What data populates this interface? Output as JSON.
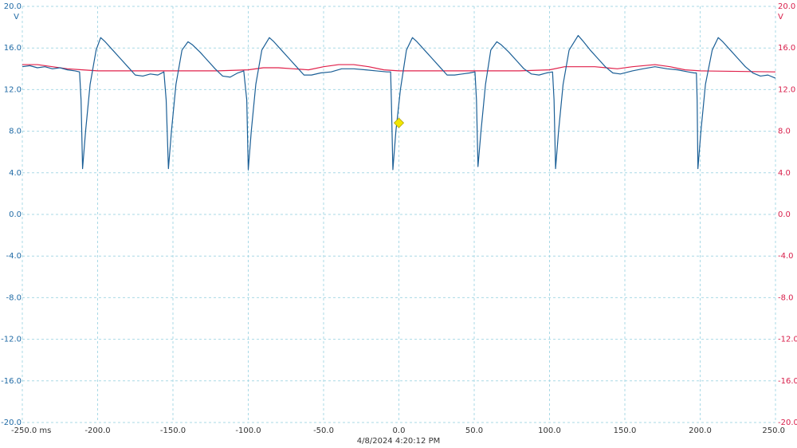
{
  "chart_data": {
    "type": "line",
    "footer": "4/8/2024 4:20:12 PM",
    "y_unit": "V",
    "y2_unit": "V",
    "grid": true,
    "xlim": [
      -250,
      250
    ],
    "xticks": [
      {
        "value": -250,
        "label": "-250.0 ms"
      },
      {
        "value": -200,
        "label": "-200.0"
      },
      {
        "value": -150,
        "label": "-150.0"
      },
      {
        "value": -100,
        "label": "-100.0"
      },
      {
        "value": -50,
        "label": "-50.0"
      },
      {
        "value": 0,
        "label": "0.0"
      },
      {
        "value": 50,
        "label": "50.0"
      },
      {
        "value": 100,
        "label": "100.0"
      },
      {
        "value": 150,
        "label": "150.0"
      },
      {
        "value": 200,
        "label": "200.0"
      },
      {
        "value": 250,
        "label": "250.0"
      }
    ],
    "ylim": [
      -20,
      20
    ],
    "yticks": [
      {
        "value": 20,
        "label": "20.0"
      },
      {
        "value": 16,
        "label": "16.0"
      },
      {
        "value": 12,
        "label": "12.0"
      },
      {
        "value": 8,
        "label": "8.0"
      },
      {
        "value": 4,
        "label": "4.0"
      },
      {
        "value": 0,
        "label": "0.0"
      },
      {
        "value": -4,
        "label": "-4.0"
      },
      {
        "value": -8,
        "label": "-8.0"
      },
      {
        "value": -12,
        "label": "-12.0"
      },
      {
        "value": -16,
        "label": "-16.0"
      },
      {
        "value": -20,
        "label": "-20.0"
      }
    ],
    "y2lim": [
      -20,
      20
    ],
    "y2ticks": [
      {
        "value": 20,
        "label": "20.0"
      },
      {
        "value": 16,
        "label": "16.0"
      },
      {
        "value": 12,
        "label": "12.0"
      },
      {
        "value": 8,
        "label": "8.0"
      },
      {
        "value": 4,
        "label": "4.0"
      },
      {
        "value": 0,
        "label": "0.0"
      },
      {
        "value": -4,
        "label": "-4.0"
      },
      {
        "value": -8,
        "label": "-8.0"
      },
      {
        "value": -12,
        "label": "-12.0"
      },
      {
        "value": -16,
        "label": "-16.0"
      },
      {
        "value": -20,
        "label": "-20.0"
      }
    ],
    "y_color": "#1f6aa5",
    "y2_color": "#d81e4a",
    "trigger": {
      "x": 0,
      "y": 8.8,
      "color": "#f2e600"
    },
    "series": [
      {
        "color": "#1b5f96",
        "axis": "y",
        "x": [
          -250,
          -245,
          -240,
          -235,
          -230,
          -225,
          -220,
          -215,
          -212,
          -211,
          -210,
          -208,
          -205,
          -201,
          -198,
          -195,
          -190,
          -185,
          -180,
          -175,
          -170,
          -165,
          -160,
          -156,
          -154.5,
          -153,
          -151,
          -148,
          -144,
          -140,
          -137,
          -132,
          -127,
          -122,
          -117,
          -112,
          -107,
          -103,
          -101,
          -100,
          -98,
          -95,
          -91,
          -86,
          -83,
          -78,
          -73,
          -68,
          -63,
          -58,
          -52,
          -45,
          -38,
          -30,
          -22,
          -15,
          -8,
          -5.5,
          -5,
          -4,
          -2,
          1,
          5,
          9,
          12,
          17,
          22,
          27,
          32,
          37,
          42,
          47,
          50.5,
          51.5,
          52.5,
          54.5,
          57.5,
          61,
          65,
          68,
          73,
          78,
          83,
          88,
          93,
          98,
          102,
          103,
          104,
          106,
          109,
          113,
          119,
          122,
          127,
          132,
          137,
          142,
          147,
          155,
          162,
          170,
          178,
          185,
          192,
          196,
          197.5,
          198,
          198.5,
          200.5,
          203.5,
          208,
          212,
          215,
          220,
          225,
          230,
          235,
          240,
          245,
          250
        ],
        "values": [
          14.2,
          14.3,
          14.1,
          14.2,
          14.0,
          14.1,
          13.9,
          13.8,
          13.7,
          11.0,
          4.4,
          8.0,
          12.5,
          15.8,
          17.0,
          16.6,
          15.8,
          15.0,
          14.2,
          13.4,
          13.3,
          13.5,
          13.4,
          13.7,
          11.0,
          4.4,
          8.0,
          12.5,
          15.8,
          16.6,
          16.3,
          15.6,
          14.8,
          14.0,
          13.3,
          13.2,
          13.6,
          13.8,
          11.0,
          4.3,
          8.0,
          12.5,
          15.8,
          17.0,
          16.6,
          15.8,
          15.0,
          14.2,
          13.4,
          13.4,
          13.6,
          13.7,
          14.0,
          14.0,
          13.9,
          13.8,
          13.7,
          13.7,
          11.0,
          4.3,
          8.0,
          12.0,
          15.8,
          17.0,
          16.6,
          15.8,
          15.0,
          14.2,
          13.4,
          13.4,
          13.5,
          13.6,
          13.7,
          11.0,
          4.6,
          8.0,
          12.5,
          15.8,
          16.6,
          16.3,
          15.6,
          14.8,
          14.0,
          13.5,
          13.4,
          13.6,
          13.7,
          11.0,
          4.4,
          8.0,
          12.5,
          15.8,
          17.2,
          16.7,
          15.8,
          15.0,
          14.2,
          13.6,
          13.5,
          13.8,
          14.0,
          14.2,
          14.0,
          13.9,
          13.7,
          13.6,
          13.6,
          11.0,
          4.4,
          8.0,
          12.5,
          15.8,
          17.0,
          16.6,
          15.8,
          15.0,
          14.2,
          13.6,
          13.3,
          13.4,
          13.1
        ]
      },
      {
        "color": "#e0204a",
        "axis": "y2",
        "x": [
          -250,
          -240,
          -230,
          -220,
          -210,
          -200,
          -150,
          -120,
          -100,
          -90,
          -80,
          -70,
          -60,
          -50,
          -40,
          -30,
          -20,
          -10,
          0,
          50,
          80,
          100,
          110,
          130,
          145,
          155,
          170,
          180,
          190,
          200,
          250
        ],
        "values": [
          14.4,
          14.4,
          14.2,
          14.0,
          13.9,
          13.8,
          13.8,
          13.8,
          13.9,
          14.1,
          14.1,
          14.0,
          13.9,
          14.2,
          14.4,
          14.4,
          14.2,
          13.9,
          13.8,
          13.8,
          13.8,
          13.9,
          14.2,
          14.2,
          14.0,
          14.2,
          14.4,
          14.2,
          13.9,
          13.8,
          13.7
        ]
      }
    ]
  }
}
